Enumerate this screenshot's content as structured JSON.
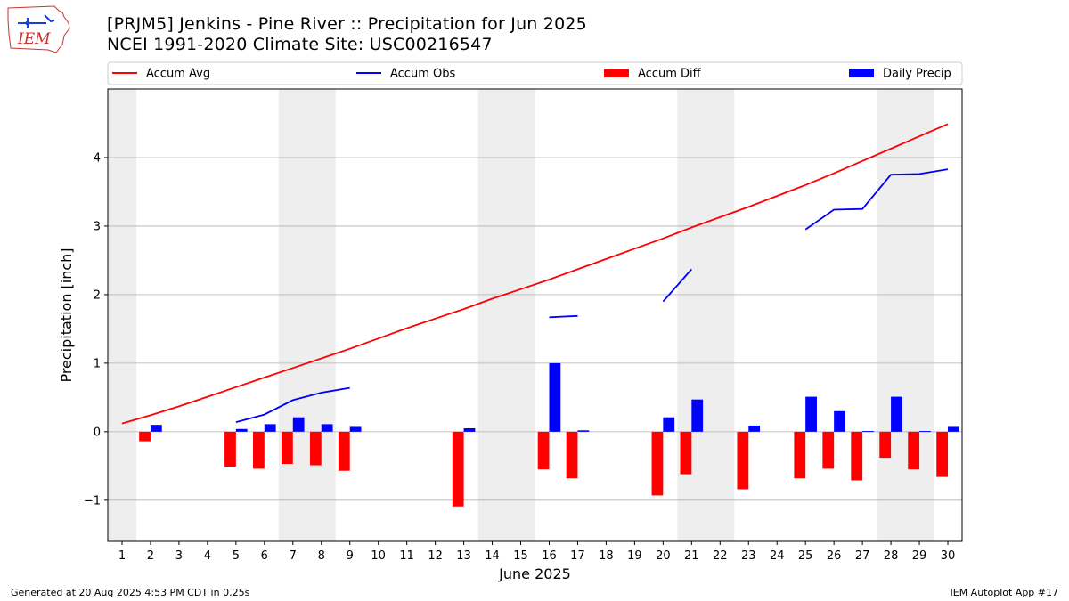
{
  "header": {
    "title_line1": "[PRJM5] Jenkins - Pine River :: Precipitation for Jun 2025",
    "title_line2": "NCEI 1991-2020 Climate Site: USC00216547",
    "logo_text": "IEM"
  },
  "footer": {
    "left": "Generated at 20 Aug 2025 4:53 PM CDT in 0.25s",
    "right": "IEM Autoplot App #17"
  },
  "colors": {
    "accum_avg": "#ff0000",
    "accum_obs": "#0000ff",
    "accum_diff": "#ff0000",
    "daily_precip": "#0000ff",
    "weekend_shade": "#eeeeee",
    "grid": "#b0b0b0"
  },
  "chart_data": {
    "type": "bar",
    "xlabel": "June 2025",
    "ylabel": "Precipitation [inch]",
    "xlim": [
      0.5,
      30.5
    ],
    "ylim": [
      -1.6,
      5.0
    ],
    "yticks": [
      -1,
      0,
      1,
      2,
      3,
      4
    ],
    "x": [
      1,
      2,
      3,
      4,
      5,
      6,
      7,
      8,
      9,
      10,
      11,
      12,
      13,
      14,
      15,
      16,
      17,
      18,
      19,
      20,
      21,
      22,
      23,
      24,
      25,
      26,
      27,
      28,
      29,
      30
    ],
    "grid": "horizontal",
    "legend_position": "top",
    "shaded_days": [
      [
        0.5,
        1.5
      ],
      [
        6.5,
        8.5
      ],
      [
        13.5,
        15.5
      ],
      [
        20.5,
        22.5
      ],
      [
        27.5,
        29.5
      ]
    ],
    "series": [
      {
        "name": "Accum Avg",
        "type": "line",
        "values": [
          0.12,
          0.24,
          0.37,
          0.51,
          0.65,
          0.79,
          0.93,
          1.07,
          1.21,
          1.36,
          1.51,
          1.65,
          1.79,
          1.94,
          2.08,
          2.22,
          2.37,
          2.52,
          2.67,
          2.82,
          2.98,
          3.13,
          3.28,
          3.44,
          3.6,
          3.77,
          3.95,
          4.13,
          4.31,
          4.49
        ]
      },
      {
        "name": "Accum Obs",
        "type": "line",
        "values": [
          null,
          null,
          null,
          null,
          0.14,
          0.25,
          0.46,
          0.57,
          0.64,
          null,
          null,
          null,
          null,
          null,
          null,
          1.67,
          1.69,
          null,
          null,
          1.9,
          2.37,
          null,
          null,
          null,
          2.95,
          3.24,
          3.25,
          3.75,
          3.76,
          3.83
        ]
      },
      {
        "name": "Accum Diff",
        "type": "bar",
        "values": [
          0,
          -0.14,
          0,
          0,
          -0.51,
          -0.54,
          -0.47,
          -0.49,
          -0.57,
          0,
          0,
          0,
          -1.09,
          0,
          0,
          -0.55,
          -0.68,
          0,
          0,
          -0.93,
          -0.62,
          0,
          -0.84,
          0,
          -0.68,
          -0.54,
          -0.71,
          -0.38,
          -0.55,
          -0.66
        ]
      },
      {
        "name": "Daily Precip",
        "type": "bar",
        "values": [
          0,
          0.1,
          0,
          0,
          0.04,
          0.11,
          0.21,
          0.11,
          0.07,
          0,
          0,
          0,
          0.05,
          0,
          0,
          1.0,
          0.02,
          0,
          0,
          0.21,
          0.47,
          0,
          0.09,
          0,
          0.51,
          0.3,
          0.01,
          0.51,
          0.01,
          0.07
        ]
      }
    ]
  }
}
